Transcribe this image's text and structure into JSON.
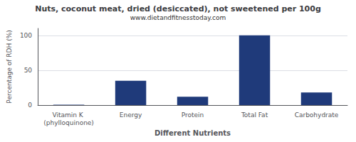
{
  "chart_data": {
    "type": "bar",
    "title": "Nuts, coconut meat, dried (desiccated), not sweetened per 100g",
    "subtitle": "www.dietandfitnesstoday.com",
    "xlabel": "Different Nutrients",
    "ylabel": "Percentage of RDH (%)",
    "categories": [
      "Vitamin K (phylloquinone)",
      "Energy",
      "Protein",
      "Total Fat",
      "Carbohydrate"
    ],
    "values": [
      0.5,
      35,
      12,
      100,
      18
    ],
    "color": "#1f3a7a",
    "ylim": [
      0,
      110
    ],
    "yticks": [
      0,
      50,
      100
    ],
    "grid": true
  }
}
